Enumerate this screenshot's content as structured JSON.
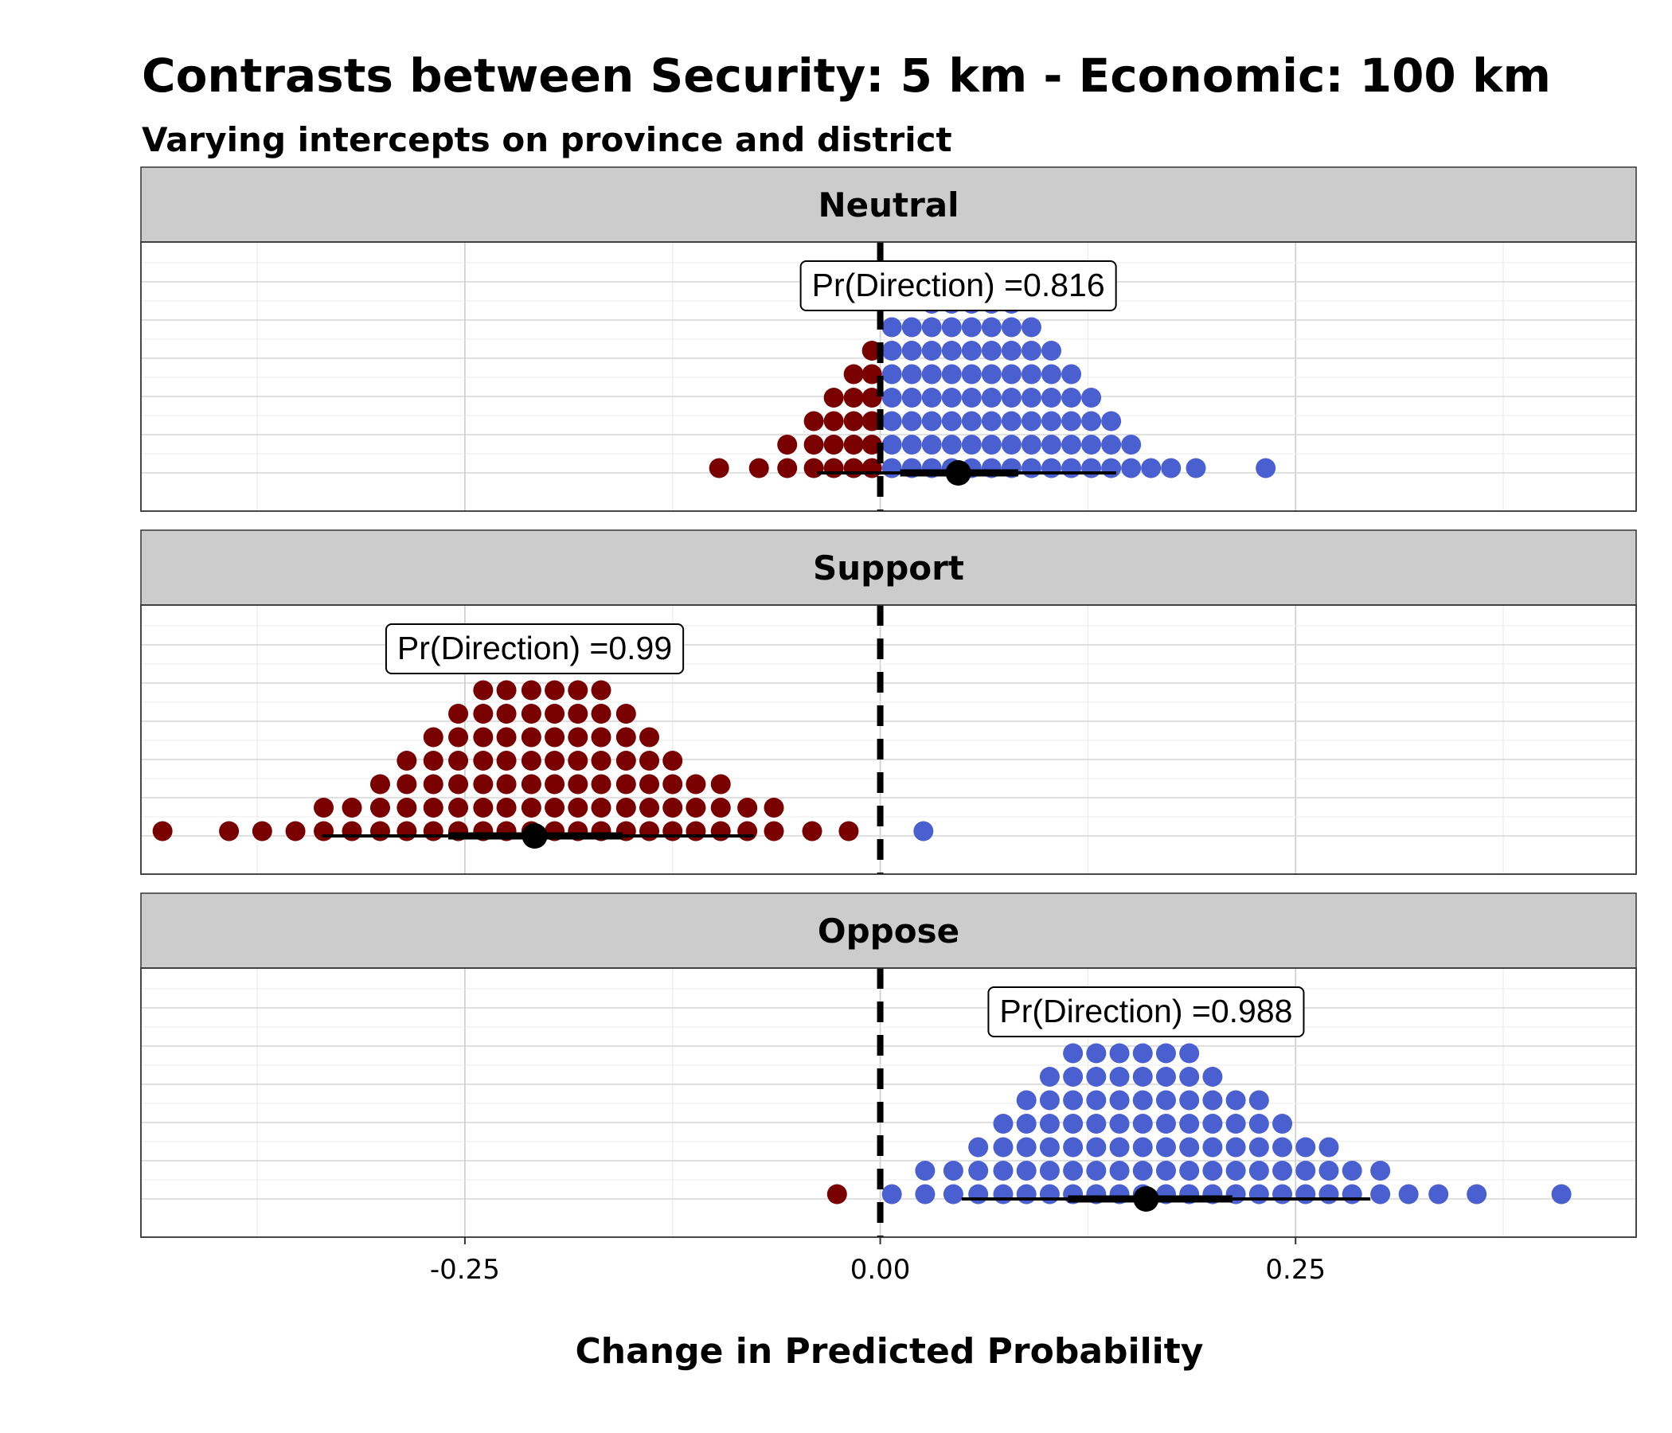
{
  "chart_data": {
    "type": "dotplot",
    "title": "Contrasts between Security: 5 km - Economic: 100 km",
    "subtitle": "Varying intercepts on province and district",
    "xlabel": "Change in Predicted Probability",
    "xlim": [
      -0.445,
      0.455
    ],
    "x_ticks": [
      -0.25,
      0.0,
      0.25
    ],
    "x_tick_labels": [
      "-0.25",
      "0.00",
      "0.25"
    ],
    "grid": true,
    "legend": "none",
    "colors": {
      "negative": "#7a0000",
      "positive": "#4a5fd0",
      "strip_background": "#cccccc",
      "zero_line": "#000000"
    },
    "panels": [
      {
        "label": "Neutral",
        "annotation": "Pr(Direction) =0.816",
        "point_estimate": 0.047,
        "interval_inner": [
          0.012,
          0.083
        ],
        "interval_outer": [
          -0.038,
          0.142
        ],
        "dots": [
          {
            "x": -0.097,
            "count": 1
          },
          {
            "x": -0.073,
            "count": 1
          },
          {
            "x": -0.056,
            "count": 2
          },
          {
            "x": -0.04,
            "count": 3
          },
          {
            "x": -0.028,
            "count": 4
          },
          {
            "x": -0.016,
            "count": 5
          },
          {
            "x": -0.005,
            "count": 6
          },
          {
            "x": 0.007,
            "count": 7
          },
          {
            "x": 0.019,
            "count": 7
          },
          {
            "x": 0.031,
            "count": 8
          },
          {
            "x": 0.043,
            "count": 9
          },
          {
            "x": 0.055,
            "count": 9
          },
          {
            "x": 0.067,
            "count": 9
          },
          {
            "x": 0.079,
            "count": 8
          },
          {
            "x": 0.091,
            "count": 7
          },
          {
            "x": 0.103,
            "count": 6
          },
          {
            "x": 0.115,
            "count": 5
          },
          {
            "x": 0.127,
            "count": 4
          },
          {
            "x": 0.139,
            "count": 3
          },
          {
            "x": 0.151,
            "count": 2
          },
          {
            "x": 0.163,
            "count": 1
          },
          {
            "x": 0.175,
            "count": 1
          },
          {
            "x": 0.19,
            "count": 1
          },
          {
            "x": 0.232,
            "count": 1
          }
        ]
      },
      {
        "label": "Support",
        "annotation": "Pr(Direction) =0.99",
        "point_estimate": -0.208,
        "interval_inner": [
          -0.26,
          -0.155
        ],
        "interval_outer": [
          -0.336,
          -0.076
        ],
        "dots": [
          {
            "x": -0.432,
            "count": 1
          },
          {
            "x": -0.392,
            "count": 1
          },
          {
            "x": -0.372,
            "count": 1
          },
          {
            "x": -0.352,
            "count": 1
          },
          {
            "x": -0.335,
            "count": 2
          },
          {
            "x": -0.318,
            "count": 2
          },
          {
            "x": -0.301,
            "count": 3
          },
          {
            "x": -0.285,
            "count": 4
          },
          {
            "x": -0.269,
            "count": 5
          },
          {
            "x": -0.254,
            "count": 6
          },
          {
            "x": -0.239,
            "count": 7
          },
          {
            "x": -0.225,
            "count": 7
          },
          {
            "x": -0.21,
            "count": 7
          },
          {
            "x": -0.196,
            "count": 7
          },
          {
            "x": -0.182,
            "count": 7
          },
          {
            "x": -0.168,
            "count": 7
          },
          {
            "x": -0.153,
            "count": 6
          },
          {
            "x": -0.139,
            "count": 5
          },
          {
            "x": -0.125,
            "count": 4
          },
          {
            "x": -0.111,
            "count": 3
          },
          {
            "x": -0.096,
            "count": 3
          },
          {
            "x": -0.08,
            "count": 2
          },
          {
            "x": -0.064,
            "count": 2
          },
          {
            "x": -0.041,
            "count": 1
          },
          {
            "x": -0.019,
            "count": 1
          },
          {
            "x": 0.026,
            "count": 1
          }
        ]
      },
      {
        "label": "Oppose",
        "annotation": "Pr(Direction) =0.988",
        "point_estimate": 0.16,
        "interval_inner": [
          0.113,
          0.212
        ],
        "interval_outer": [
          0.049,
          0.295
        ],
        "dots": [
          {
            "x": -0.026,
            "count": 1
          },
          {
            "x": 0.007,
            "count": 1
          },
          {
            "x": 0.027,
            "count": 2
          },
          {
            "x": 0.044,
            "count": 2
          },
          {
            "x": 0.059,
            "count": 3
          },
          {
            "x": 0.074,
            "count": 4
          },
          {
            "x": 0.088,
            "count": 5
          },
          {
            "x": 0.102,
            "count": 6
          },
          {
            "x": 0.116,
            "count": 7
          },
          {
            "x": 0.13,
            "count": 7
          },
          {
            "x": 0.144,
            "count": 7
          },
          {
            "x": 0.158,
            "count": 7
          },
          {
            "x": 0.172,
            "count": 7
          },
          {
            "x": 0.186,
            "count": 7
          },
          {
            "x": 0.2,
            "count": 6
          },
          {
            "x": 0.214,
            "count": 5
          },
          {
            "x": 0.228,
            "count": 5
          },
          {
            "x": 0.242,
            "count": 4
          },
          {
            "x": 0.256,
            "count": 3
          },
          {
            "x": 0.27,
            "count": 3
          },
          {
            "x": 0.284,
            "count": 2
          },
          {
            "x": 0.301,
            "count": 2
          },
          {
            "x": 0.318,
            "count": 1
          },
          {
            "x": 0.336,
            "count": 1
          },
          {
            "x": 0.359,
            "count": 1
          },
          {
            "x": 0.41,
            "count": 1
          }
        ]
      }
    ]
  }
}
